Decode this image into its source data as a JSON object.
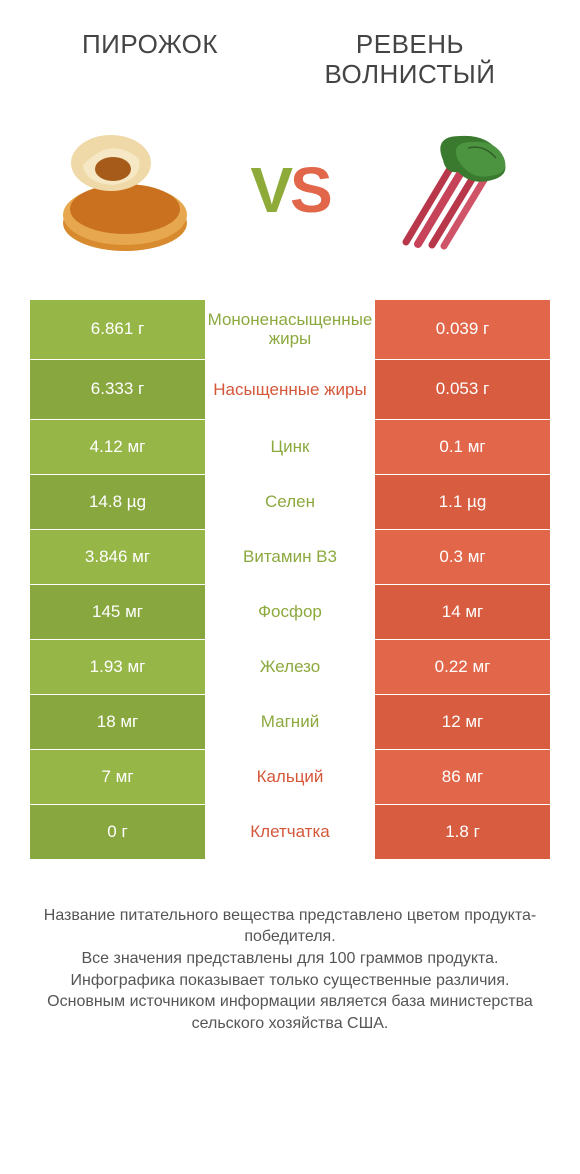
{
  "colors": {
    "green": "#97b648",
    "green_dark": "#88a73e",
    "orange": "#e2674a",
    "orange_dark": "#d85c3f",
    "mid_green_text": "#8ca93e",
    "mid_orange_text": "#d5573a"
  },
  "header": {
    "left": "ПИРОЖОК",
    "right": "РЕВЕНЬ ВОЛНИСТЫЙ"
  },
  "vs": {
    "g": "V",
    "o": "S"
  },
  "rows": [
    {
      "left": "6.861 г",
      "label": "Мононенасыщенные жиры",
      "right": "0.039 г",
      "winner": "left"
    },
    {
      "left": "6.333 г",
      "label": "Насыщенные жиры",
      "right": "0.053 г",
      "winner": "right"
    },
    {
      "left": "4.12 мг",
      "label": "Цинк",
      "right": "0.1 мг",
      "winner": "left"
    },
    {
      "left": "14.8 µg",
      "label": "Селен",
      "right": "1.1 µg",
      "winner": "left"
    },
    {
      "left": "3.846 мг",
      "label": "Витамин B3",
      "right": "0.3 мг",
      "winner": "left"
    },
    {
      "left": "145 мг",
      "label": "Фосфор",
      "right": "14 мг",
      "winner": "left"
    },
    {
      "left": "1.93 мг",
      "label": "Железо",
      "right": "0.22 мг",
      "winner": "left"
    },
    {
      "left": "18 мг",
      "label": "Магний",
      "right": "12 мг",
      "winner": "left"
    },
    {
      "left": "7 мг",
      "label": "Кальций",
      "right": "86 мг",
      "winner": "right"
    },
    {
      "left": "0 г",
      "label": "Клетчатка",
      "right": "1.8 г",
      "winner": "right"
    }
  ],
  "footer": {
    "l1": "Название питательного вещества представлено цветом продукта-победителя.",
    "l2": "Все значения представлены для 100 граммов продукта.",
    "l3": "Инфографика показывает только существенные различия.",
    "l4": "Основным источником информации является база министерства сельского хозяйства США."
  }
}
